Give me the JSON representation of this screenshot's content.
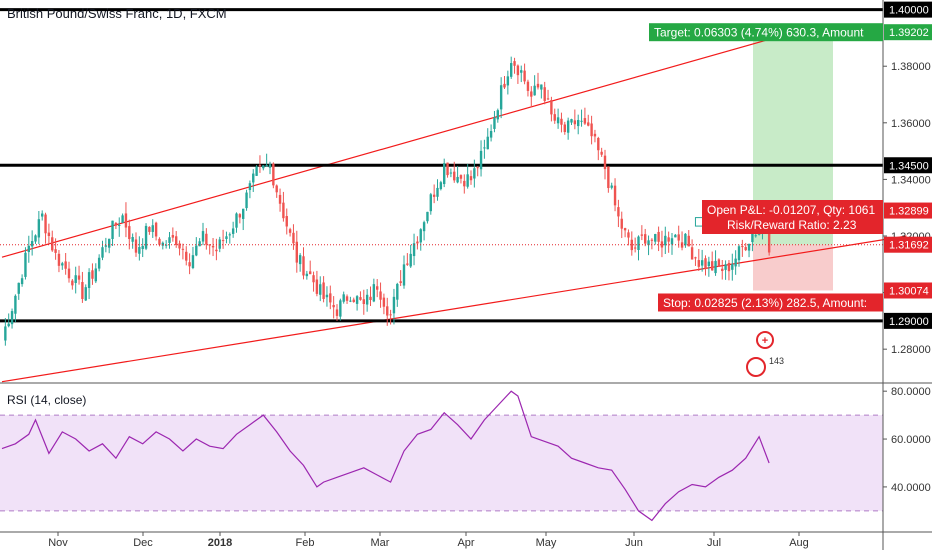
{
  "header": {
    "title": "British Pound/Swiss Franc, 1D, FXCM"
  },
  "rsi_panel": {
    "title": "RSI (14, close)"
  },
  "colors": {
    "up": "#26a69a",
    "down": "#ef5350",
    "channel": "#f21b1b",
    "level": "#000000",
    "target_zone": "#c8ebc8",
    "stop_zone": "#f8cccc",
    "rsi_line": "#9c27b0",
    "rsi_band": "#f1e2f8",
    "price_tag": "#e3252b",
    "target_tag": "#25a844"
  },
  "chart_data": [
    {
      "type": "candlestick",
      "title": "British Pound/Swiss Franc, 1D, FXCM",
      "x_tick_labels": [
        "Nov",
        "Dec",
        "2018",
        "Feb",
        "Mar",
        "Apr",
        "May",
        "Jun",
        "Jul",
        "Aug"
      ],
      "y_tick_labels": [
        "1.28000",
        "1.30000",
        "1.32000",
        "1.34000",
        "1.36000",
        "1.38000"
      ],
      "ylim": [
        1.2684,
        1.4034
      ],
      "grid": false,
      "anchors": [
        [
          0,
          1.284
        ],
        [
          3,
          1.295
        ],
        [
          8,
          1.316
        ],
        [
          12,
          1.327
        ],
        [
          16,
          1.313
        ],
        [
          20,
          1.307
        ],
        [
          24,
          1.3
        ],
        [
          28,
          1.309
        ],
        [
          32,
          1.321
        ],
        [
          36,
          1.327
        ],
        [
          40,
          1.315
        ],
        [
          44,
          1.323
        ],
        [
          48,
          1.317
        ],
        [
          52,
          1.319
        ],
        [
          56,
          1.312
        ],
        [
          60,
          1.319
        ],
        [
          64,
          1.315
        ],
        [
          68,
          1.322
        ],
        [
          72,
          1.331
        ],
        [
          76,
          1.342
        ],
        [
          80,
          1.345
        ],
        [
          84,
          1.328
        ],
        [
          88,
          1.312
        ],
        [
          92,
          1.306
        ],
        [
          96,
          1.298
        ],
        [
          100,
          1.294
        ],
        [
          104,
          1.3
        ],
        [
          108,
          1.295
        ],
        [
          112,
          1.303
        ],
        [
          116,
          1.292
        ],
        [
          120,
          1.31
        ],
        [
          124,
          1.32
        ],
        [
          128,
          1.333
        ],
        [
          132,
          1.345
        ],
        [
          136,
          1.341
        ],
        [
          140,
          1.34
        ],
        [
          144,
          1.35
        ],
        [
          148,
          1.367
        ],
        [
          152,
          1.383
        ],
        [
          155,
          1.378
        ],
        [
          158,
          1.369
        ],
        [
          161,
          1.374
        ],
        [
          164,
          1.362
        ],
        [
          168,
          1.357
        ],
        [
          172,
          1.361
        ],
        [
          176,
          1.355
        ],
        [
          180,
          1.344
        ],
        [
          184,
          1.326
        ],
        [
          188,
          1.315
        ],
        [
          192,
          1.32
        ],
        [
          196,
          1.317
        ],
        [
          200,
          1.321
        ],
        [
          204,
          1.318
        ],
        [
          208,
          1.311
        ],
        [
          212,
          1.309
        ],
        [
          216,
          1.308
        ],
        [
          220,
          1.314
        ],
        [
          224,
          1.321
        ],
        [
          228,
          1.324
        ],
        [
          229,
          1.317
        ]
      ],
      "levels": [
        {
          "label": "1.40000",
          "price": 1.4
        },
        {
          "label": "1.34500",
          "price": 1.345
        },
        {
          "label": "1.29000",
          "price": 1.29
        }
      ],
      "channel_lines": [
        {
          "from": [
            0,
            1.3125
          ],
          "to": [
            240,
            1.3932
          ]
        },
        {
          "from": [
            0,
            1.2685
          ],
          "to": [
            270,
            1.32
          ]
        }
      ],
      "position": {
        "entry": 1.31692,
        "target": 1.39202,
        "stop": 1.30074,
        "target_text": "Target: 0.06303 (4.74%) 630.3, Amount",
        "stop_text": "Stop: 0.02825 (2.13%) 282.5, Amount:",
        "pnl_text": "Open P&L: -0.01207, Qty: 1061",
        "rr_text": "Risk/Reward Ratio: 2.23"
      },
      "price_tags": [
        {
          "label": "1.40000",
          "price": 1.4,
          "style": "level"
        },
        {
          "label": "1.39202",
          "price": 1.39202,
          "style": "target"
        },
        {
          "label": "1.34500",
          "price": 1.345,
          "style": "level"
        },
        {
          "label": "1.32899",
          "price": 1.32899,
          "style": "red"
        },
        {
          "label": "1.31692",
          "price": 1.31692,
          "style": "red"
        },
        {
          "label": "1.30074",
          "price": 1.30074,
          "style": "red"
        },
        {
          "label": "1.29000",
          "price": 1.29,
          "style": "level"
        }
      ],
      "badge": "143"
    },
    {
      "type": "line",
      "title": "RSI (14, close)",
      "y_tick_labels": [
        "40.0000",
        "60.0000",
        "80.0000"
      ],
      "ylim": [
        22,
        83
      ],
      "bands": [
        30,
        70
      ],
      "x": [
        0,
        4,
        8,
        10,
        14,
        18,
        22,
        26,
        30,
        34,
        38,
        42,
        46,
        50,
        54,
        58,
        62,
        66,
        70,
        74,
        78,
        82,
        86,
        90,
        94,
        96,
        100,
        104,
        108,
        112,
        116,
        120,
        124,
        128,
        132,
        136,
        140,
        144,
        148,
        152,
        154,
        158,
        162,
        166,
        170,
        174,
        178,
        182,
        186,
        190,
        194,
        198,
        202,
        206,
        210,
        214,
        218,
        222,
        226,
        229
      ],
      "values": [
        56,
        58,
        62,
        68,
        54,
        63,
        60,
        55,
        58,
        52,
        61,
        58,
        63,
        60,
        55,
        60,
        57,
        56,
        62,
        66,
        70,
        63,
        55,
        49,
        40,
        42,
        44,
        46,
        48,
        45,
        42,
        55,
        62,
        64,
        71,
        66,
        60,
        68,
        74,
        80,
        78,
        61,
        59,
        57,
        52,
        50,
        48,
        47,
        39,
        30,
        26,
        33,
        38,
        41,
        40,
        44,
        47,
        52,
        61,
        50
      ]
    }
  ]
}
